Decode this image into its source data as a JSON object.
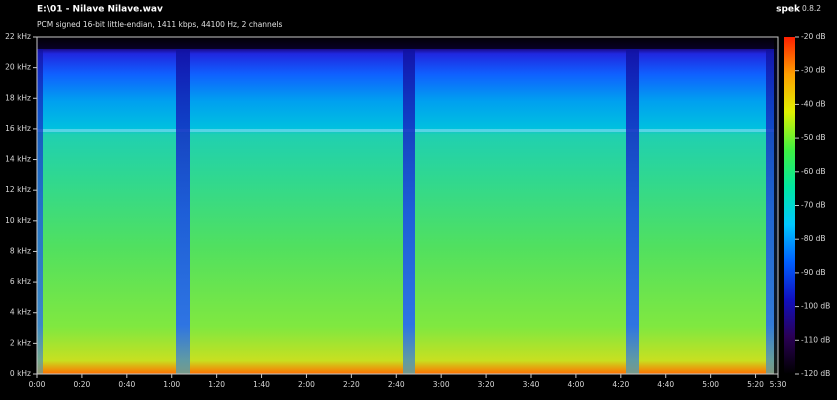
{
  "header": {
    "title": "E:\\01 - Nilave Nilave.wav",
    "subtitle": "PCM signed 16-bit little-endian, 1411 kbps, 44100 Hz, 2 channels",
    "app": "spek",
    "version": "0.8.2"
  },
  "chart_data": {
    "type": "spectrogram",
    "xlim": [
      0,
      330
    ],
    "xticks": [
      {
        "value": 0,
        "label": "0:00"
      },
      {
        "value": 20,
        "label": "0:20"
      },
      {
        "value": 40,
        "label": "0:40"
      },
      {
        "value": 60,
        "label": "1:00"
      },
      {
        "value": 80,
        "label": "1:20"
      },
      {
        "value": 100,
        "label": "1:40"
      },
      {
        "value": 120,
        "label": "2:00"
      },
      {
        "value": 140,
        "label": "2:20"
      },
      {
        "value": 160,
        "label": "2:40"
      },
      {
        "value": 180,
        "label": "3:00"
      },
      {
        "value": 200,
        "label": "3:20"
      },
      {
        "value": 220,
        "label": "3:40"
      },
      {
        "value": 240,
        "label": "4:00"
      },
      {
        "value": 260,
        "label": "4:20"
      },
      {
        "value": 280,
        "label": "4:40"
      },
      {
        "value": 300,
        "label": "5:00"
      },
      {
        "value": 320,
        "label": "5:20"
      },
      {
        "value": 330,
        "label": "5:30"
      }
    ],
    "ylim": [
      0,
      22
    ],
    "yticks": [
      {
        "value": 0,
        "label": "0 kHz"
      },
      {
        "value": 2,
        "label": "2 kHz"
      },
      {
        "value": 4,
        "label": "4 kHz"
      },
      {
        "value": 6,
        "label": "6 kHz"
      },
      {
        "value": 8,
        "label": "8 kHz"
      },
      {
        "value": 10,
        "label": "10 kHz"
      },
      {
        "value": 12,
        "label": "12 kHz"
      },
      {
        "value": 14,
        "label": "14 kHz"
      },
      {
        "value": 16,
        "label": "16 kHz"
      },
      {
        "value": 18,
        "label": "18 kHz"
      },
      {
        "value": 20,
        "label": "20 kHz"
      },
      {
        "value": 22,
        "label": "22 kHz"
      }
    ],
    "colorbar": {
      "range": [
        -120,
        -20
      ],
      "ticks": [
        {
          "value": -20,
          "label": "-20 dB"
        },
        {
          "value": -30,
          "label": "-30 dB"
        },
        {
          "value": -40,
          "label": "-40 dB"
        },
        {
          "value": -50,
          "label": "-50 dB"
        },
        {
          "value": -60,
          "label": "-60 dB"
        },
        {
          "value": -70,
          "label": "-70 dB"
        },
        {
          "value": -80,
          "label": "-80 dB"
        },
        {
          "value": -90,
          "label": "-90 dB"
        },
        {
          "value": -100,
          "label": "-100 dB"
        },
        {
          "value": -110,
          "label": "-110 dB"
        },
        {
          "value": -120,
          "label": "-120 dB"
        }
      ],
      "colors": [
        "#000000",
        "#2a0055",
        "#1010c0",
        "#0060ff",
        "#00c8ff",
        "#00e8a0",
        "#40f040",
        "#e0f000",
        "#ffa000",
        "#ff2000"
      ]
    }
  }
}
